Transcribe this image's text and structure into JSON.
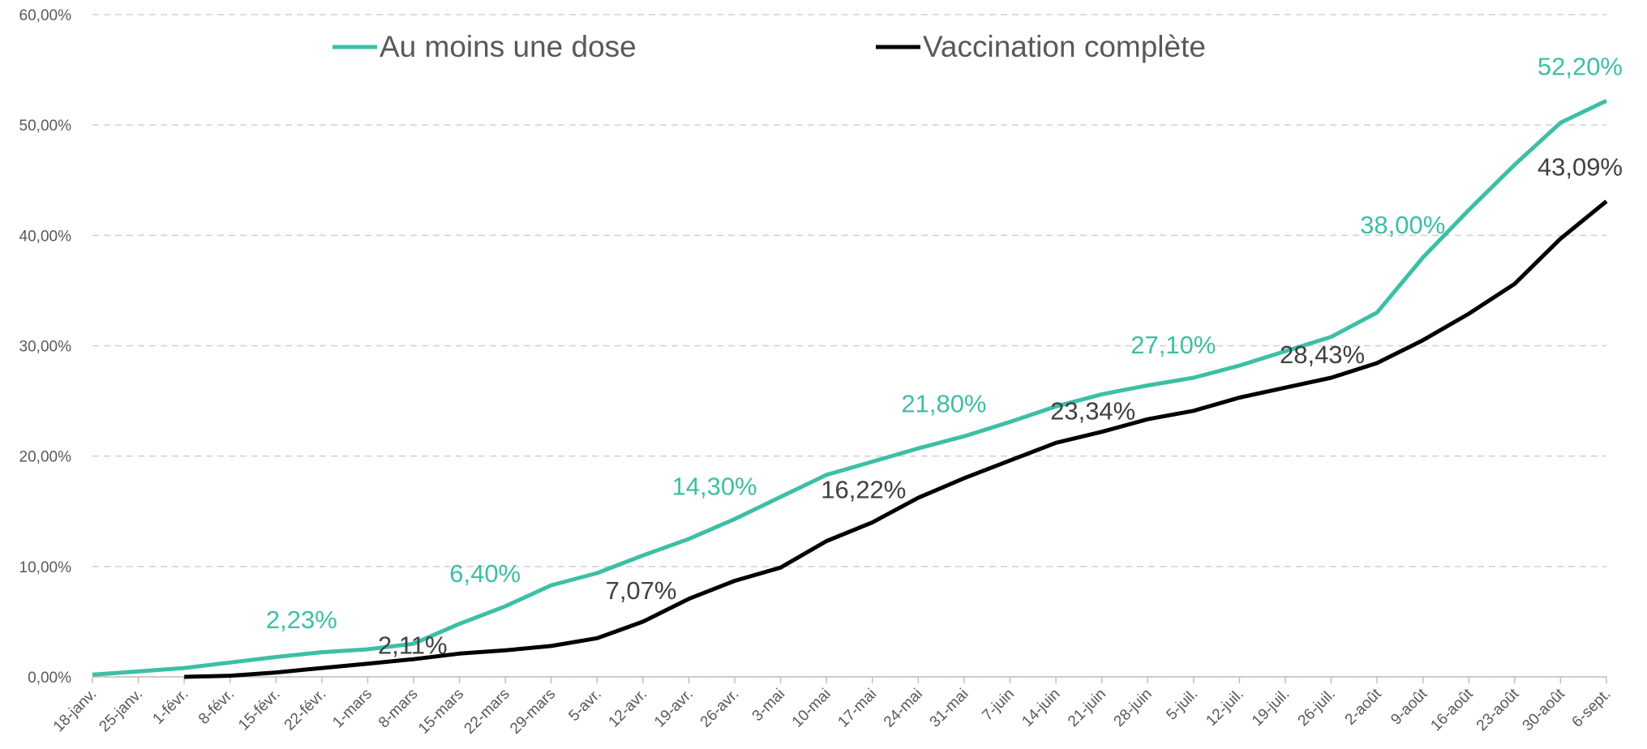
{
  "chart_data": {
    "type": "line",
    "categories": [
      "18-janv.",
      "25-janv.",
      "1-févr.",
      "8-févr.",
      "15-févr.",
      "22-févr.",
      "1-mars",
      "8-mars",
      "15-mars",
      "22-mars",
      "29-mars",
      "5-avr.",
      "12-avr.",
      "19-avr.",
      "26-avr.",
      "3-mai",
      "10-mai",
      "17-mai",
      "24-mai",
      "31-mai",
      "7-juin",
      "14-juin",
      "21-juin",
      "28-juin",
      "5-juil.",
      "12-juil.",
      "19-juil.",
      "26-juil.",
      "2-août",
      "9-août",
      "16-août",
      "23-août",
      "30-août",
      "6-sept."
    ],
    "series": [
      {
        "name": "Au moins une dose",
        "color": "#3cbfa5",
        "values": [
          0.2,
          0.5,
          0.8,
          1.3,
          1.8,
          2.23,
          2.5,
          3.0,
          4.8,
          6.4,
          8.3,
          9.4,
          11.0,
          12.5,
          14.3,
          16.3,
          18.3,
          19.5,
          20.7,
          21.8,
          23.1,
          24.5,
          25.6,
          26.4,
          27.1,
          28.2,
          29.5,
          30.8,
          33.0,
          38.0,
          42.3,
          46.4,
          50.2,
          52.2
        ],
        "value_labels": [
          null,
          null,
          null,
          null,
          null,
          "2,23%",
          null,
          null,
          null,
          "6,40%",
          null,
          null,
          null,
          null,
          "14,30%",
          null,
          null,
          null,
          null,
          "21,80%",
          null,
          null,
          null,
          null,
          "27,10%",
          null,
          null,
          null,
          null,
          "38,00%",
          null,
          null,
          null,
          "52,20%"
        ]
      },
      {
        "name": "Vaccination complète",
        "color": "#000000",
        "values": [
          null,
          null,
          0.0,
          0.1,
          0.4,
          0.8,
          1.2,
          1.6,
          2.11,
          2.4,
          2.8,
          3.5,
          5.0,
          7.07,
          8.7,
          9.9,
          12.3,
          14.0,
          16.22,
          18.0,
          19.6,
          21.2,
          22.2,
          23.34,
          24.1,
          25.3,
          26.2,
          27.1,
          28.43,
          30.5,
          32.9,
          35.6,
          39.7,
          43.09
        ],
        "value_labels": [
          null,
          null,
          null,
          null,
          null,
          null,
          null,
          null,
          "2,11%",
          null,
          null,
          null,
          null,
          "7,07%",
          null,
          null,
          null,
          null,
          "16,22%",
          null,
          null,
          null,
          null,
          "23,34%",
          null,
          null,
          null,
          null,
          "28,43%",
          null,
          null,
          null,
          null,
          "43,09%"
        ]
      }
    ],
    "ylim": [
      0,
      60
    ],
    "yticks": [
      {
        "value": 0,
        "label": "0,00%"
      },
      {
        "value": 10,
        "label": "10,00%"
      },
      {
        "value": 20,
        "label": "20,00%"
      },
      {
        "value": 30,
        "label": "30,00%"
      },
      {
        "value": 40,
        "label": "40,00%"
      },
      {
        "value": 50,
        "label": "50,00%"
      },
      {
        "value": 60,
        "label": "60,00%"
      }
    ],
    "grid": true
  }
}
